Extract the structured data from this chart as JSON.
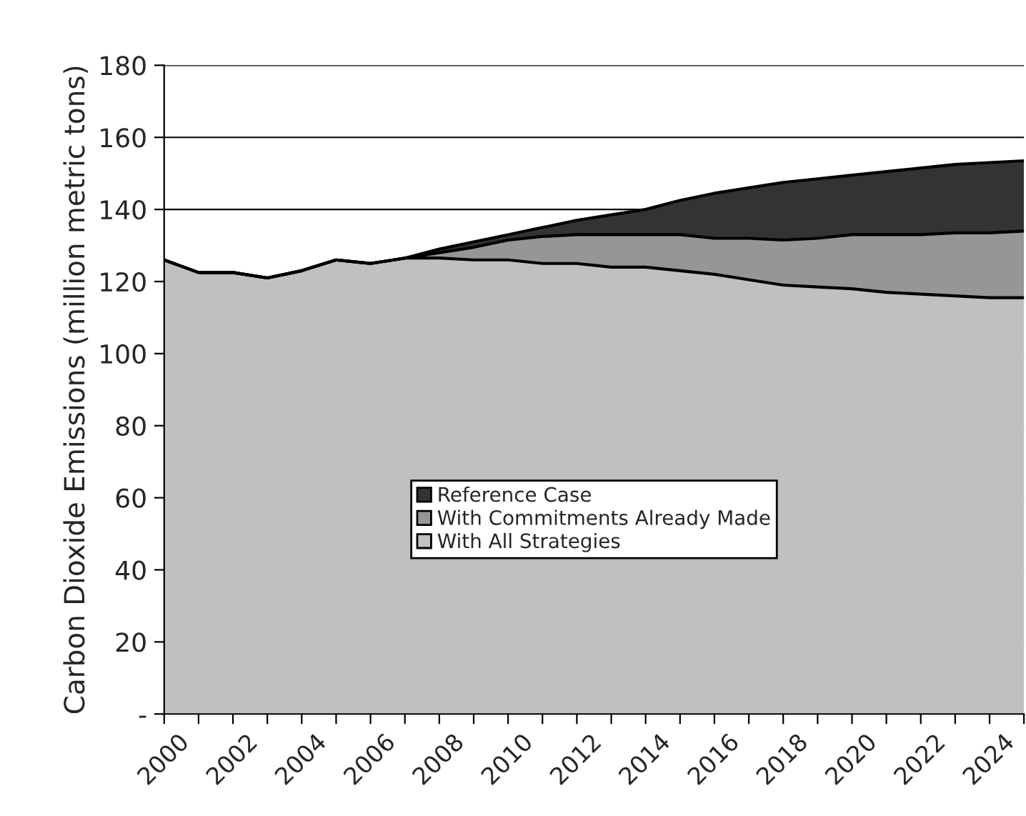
{
  "chart_data": {
    "type": "area",
    "ylabel": "Carbon Dioxide Emissions (million metric tons)",
    "x": [
      2000,
      2001,
      2002,
      2003,
      2004,
      2005,
      2006,
      2007,
      2008,
      2009,
      2010,
      2011,
      2012,
      2013,
      2014,
      2015,
      2016,
      2017,
      2018,
      2019,
      2020,
      2021,
      2022,
      2023,
      2024,
      2025
    ],
    "series": [
      {
        "name": "Reference Case",
        "color": "#333333",
        "values": [
          126,
          122.5,
          122.5,
          121,
          123,
          126,
          125,
          126.5,
          129,
          131,
          133,
          135,
          137,
          138.5,
          140,
          142.5,
          144.5,
          146,
          147.5,
          148.5,
          149.5,
          150.5,
          151.5,
          152.5,
          153,
          153.5
        ]
      },
      {
        "name": "With Commitments Already Made",
        "color": "#969696",
        "values": [
          126,
          122.5,
          122.5,
          121,
          123,
          126,
          125,
          126.5,
          128,
          129.5,
          131.5,
          132.5,
          133,
          133,
          133,
          133,
          132,
          132,
          131.5,
          132,
          133,
          133,
          133,
          133.5,
          133.5,
          134
        ]
      },
      {
        "name": "With All Strategies",
        "color": "#c0c0c0",
        "values": [
          126,
          122.5,
          122.5,
          121,
          123,
          126,
          125,
          126.5,
          126.5,
          126,
          126,
          125,
          125,
          124,
          124,
          123,
          122,
          120.5,
          119,
          118.5,
          118,
          117,
          116.5,
          116,
          115.5,
          115.5
        ]
      }
    ],
    "xlim": [
      2000,
      2025
    ],
    "xticks": [
      2000,
      {
        "value": 2001,
        "label": null
      },
      2002,
      {
        "value": 2003,
        "label": null
      },
      2004,
      {
        "value": 2005,
        "label": null
      },
      2006,
      {
        "value": 2007,
        "label": null
      },
      2008,
      {
        "value": 2009,
        "label": null
      },
      2010,
      {
        "value": 2011,
        "label": null
      },
      2012,
      {
        "value": 2013,
        "label": null
      },
      2014,
      {
        "value": 2015,
        "label": null
      },
      2016,
      {
        "value": 2017,
        "label": null
      },
      2018,
      {
        "value": 2019,
        "label": null
      },
      2020,
      {
        "value": 2021,
        "label": null
      },
      2022,
      {
        "value": 2023,
        "label": null
      },
      2024,
      {
        "value": 2025,
        "label": null
      }
    ],
    "ylim": [
      0,
      180
    ],
    "yticks": [
      {
        "value": 0,
        "label": "-"
      },
      20,
      40,
      60,
      80,
      100,
      120,
      140,
      160,
      180
    ],
    "grid": "y",
    "legend": "center"
  }
}
